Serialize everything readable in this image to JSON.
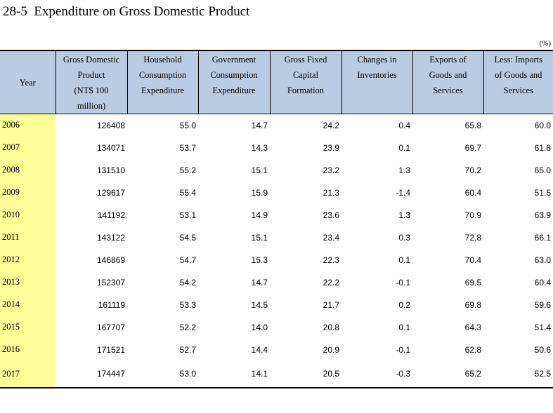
{
  "title": "28-5  Expenditure on Gross Domestic Product",
  "unit": "(%)",
  "header": {
    "year": "Year",
    "cols": [
      [
        "Gross Domestic",
        "Product",
        "(NT$ 100",
        "million)"
      ],
      [
        "Household",
        "Consumption",
        "Expenditure"
      ],
      [
        "Government",
        "Consumption",
        "Expenditure"
      ],
      [
        "Gross Fixed",
        "Capital",
        "Formation"
      ],
      [
        "Changes in",
        "Inventories"
      ],
      [
        "Exports of",
        "Goods and",
        "Services"
      ],
      [
        "Less: Imports",
        "of Goods and",
        "Services"
      ]
    ]
  },
  "rows": [
    [
      "2006",
      "126408",
      "55.0",
      "14.7",
      "24.2",
      "0.4",
      "65.8",
      "60.0"
    ],
    [
      "2007",
      "134071",
      "53.7",
      "14.3",
      "23.9",
      "0.1",
      "69.7",
      "61.8"
    ],
    [
      "2008",
      "131510",
      "55.2",
      "15.1",
      "23.2",
      "1.3",
      "70.2",
      "65.0"
    ],
    [
      "2009",
      "129617",
      "55.4",
      "15.9",
      "21.3",
      "-1.4",
      "60.4",
      "51.5"
    ],
    [
      "2010",
      "141192",
      "53.1",
      "14.9",
      "23.6",
      "1.3",
      "70.9",
      "63.9"
    ],
    [
      "2011",
      "143122",
      "54.5",
      "15.1",
      "23.4",
      "0.3",
      "72.8",
      "66.1"
    ],
    [
      "2012",
      "146869",
      "54.7",
      "15.3",
      "22.3",
      "0.1",
      "70.4",
      "63.0"
    ],
    [
      "2013",
      "152307",
      "54.2",
      "14.7",
      "22.2",
      "-0.1",
      "69.5",
      "60.4"
    ],
    [
      "2014",
      "161119",
      "53.3",
      "14.5",
      "21.7",
      "0.2",
      "69.8",
      "59.6"
    ],
    [
      "2015",
      "167707",
      "52.2",
      "14.0",
      "20.8",
      "0.1",
      "64.3",
      "51.4"
    ],
    [
      "2016",
      "171521",
      "52.7",
      "14.4",
      "20.9",
      "-0.1",
      "62.8",
      "50.6"
    ],
    [
      "2017",
      "174447",
      "53.0",
      "14.1",
      "20.5",
      "-0.3",
      "65.2",
      "52.5"
    ]
  ]
}
